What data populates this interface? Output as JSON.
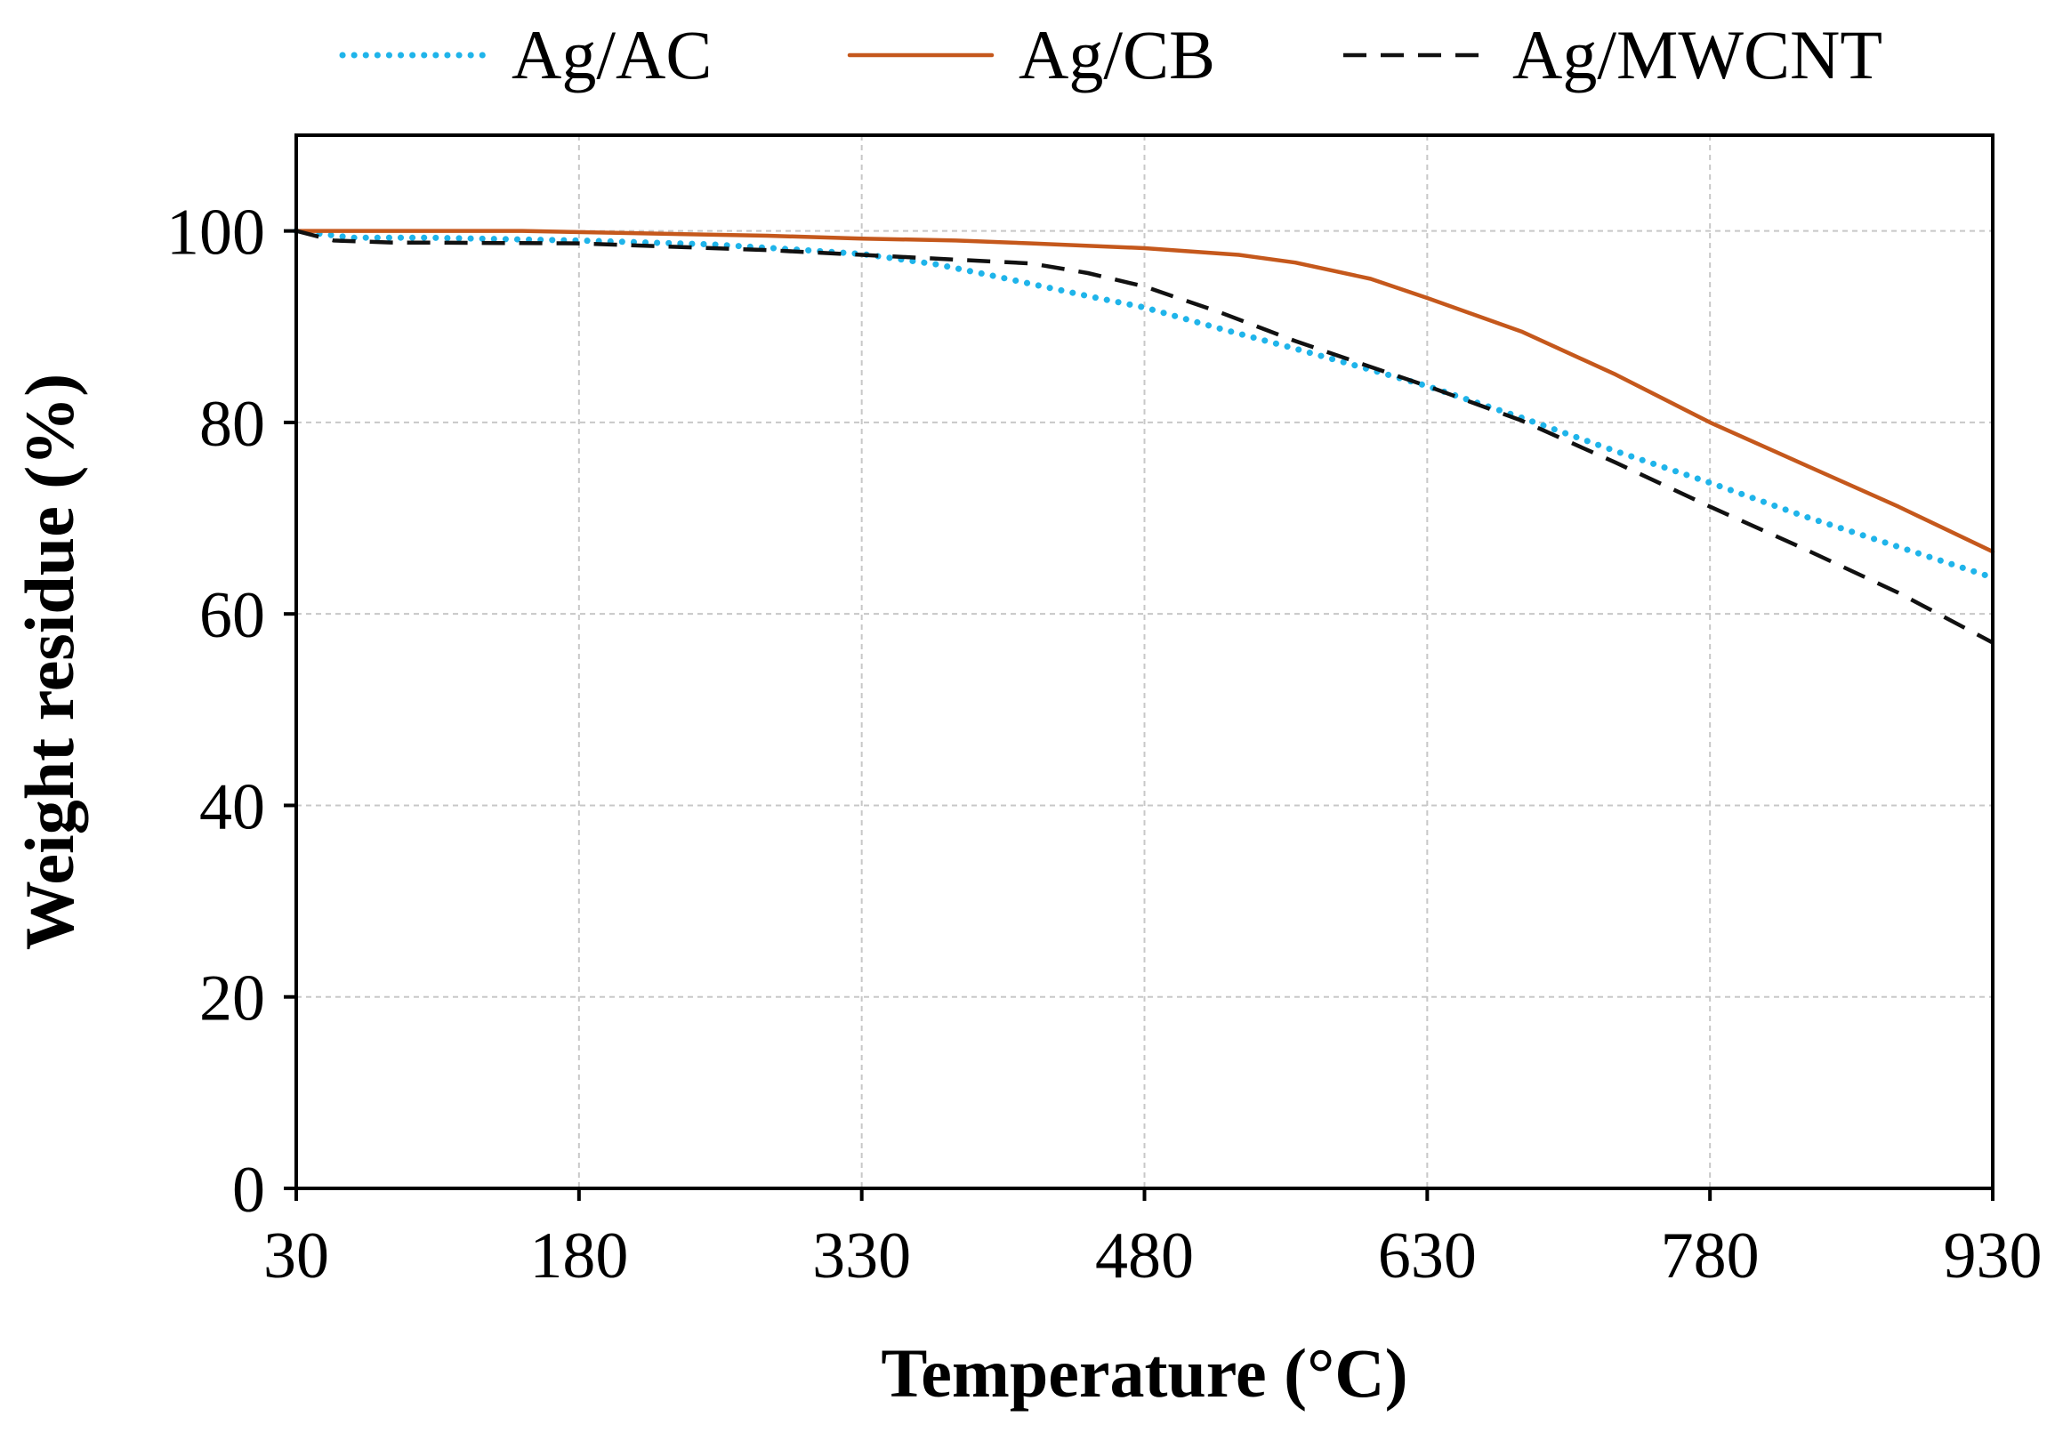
{
  "chart_data": {
    "type": "line",
    "title": "",
    "xlabel": "Temperature (°C)",
    "ylabel": "Weight residue (%)",
    "xlim": [
      30,
      930
    ],
    "ylim": [
      0,
      110
    ],
    "xticks": [
      30,
      180,
      330,
      480,
      630,
      780,
      930
    ],
    "yticks": [
      0,
      20,
      40,
      60,
      80,
      100
    ],
    "xtick_labels": [
      "30",
      "180",
      "330",
      "480",
      "630",
      "780",
      "930"
    ],
    "ytick_labels": [
      "0",
      "20",
      "40",
      "60",
      "80",
      "100"
    ],
    "grid": true,
    "legend_position": "top",
    "series": [
      {
        "name": "Ag/AC",
        "color": "#1fb4ea",
        "style": "dotted",
        "x": [
          30,
          60,
          100,
          180,
          250,
          300,
          330,
          370,
          400,
          450,
          480,
          520,
          560,
          600,
          630,
          680,
          730,
          780,
          830,
          880,
          930
        ],
        "y": [
          100,
          99.3,
          99.3,
          99,
          98.6,
          98,
          97.6,
          96.5,
          95.3,
          93.2,
          92,
          89.8,
          87.7,
          85.5,
          83.8,
          80.5,
          77,
          73.7,
          70.2,
          67,
          63.8
        ]
      },
      {
        "name": "Ag/CB",
        "color": "#c5581c",
        "style": "solid",
        "x": [
          30,
          100,
          150,
          200,
          280,
          330,
          380,
          420,
          480,
          530,
          560,
          600,
          630,
          680,
          730,
          780,
          830,
          880,
          930
        ],
        "y": [
          100,
          100,
          100,
          99.8,
          99.5,
          99.2,
          99,
          98.7,
          98.2,
          97.5,
          96.7,
          95,
          93,
          89.5,
          85,
          80,
          75.6,
          71.2,
          66.5
        ]
      },
      {
        "name": "Ag/MWCNT",
        "color": "#111111",
        "style": "dashed",
        "x": [
          30,
          50,
          80,
          180,
          280,
          330,
          380,
          420,
          450,
          480,
          520,
          560,
          600,
          630,
          680,
          730,
          780,
          830,
          880,
          930
        ],
        "y": [
          100,
          99,
          98.8,
          98.7,
          98,
          97.5,
          97,
          96.6,
          95.6,
          94.2,
          91.5,
          88.5,
          85.8,
          83.8,
          80.2,
          75.8,
          71.2,
          66.8,
          62.2,
          57
        ]
      }
    ]
  }
}
